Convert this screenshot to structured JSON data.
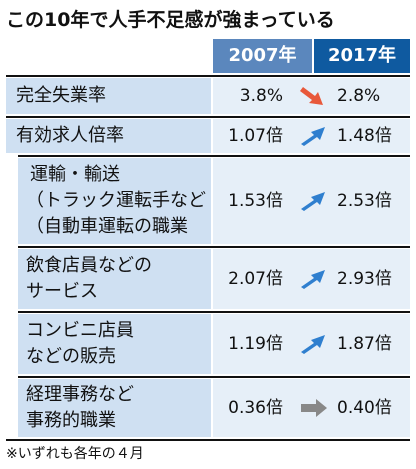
{
  "title": "この10年で人手不足感が強まっている",
  "headers": [
    "2007年",
    "2017年"
  ],
  "rows": [
    {
      "label": "完全失業率",
      "lines": [
        "完全失業率"
      ],
      "v2007": "3.8%",
      "v2017": "2.8%",
      "trend": "down"
    },
    {
      "label": "有効求人倍率",
      "lines": [
        "有効求人倍率"
      ],
      "v2007": "1.07倍",
      "v2017": "1.48倍",
      "trend": "up"
    },
    {
      "label": "運輸・輸送（トラック運転手など自動車運転の職業）",
      "lines": [
        "運輸・輸送",
        "（トラック運転手など",
        "（自動車運転の職業"
      ],
      "v2007": "1.53倍",
      "v2017": "2.53倍",
      "trend": "up"
    },
    {
      "label": "飲食店員などのサービス",
      "lines": [
        "飲食店員などの",
        "サービス"
      ],
      "v2007": "2.07倍",
      "v2017": "2.93倍",
      "trend": "up"
    },
    {
      "label": "コンビニ店員などの販売",
      "lines": [
        "コンビニ店員",
        "などの販売"
      ],
      "v2007": "1.19倍",
      "v2017": "1.87倍",
      "trend": "up"
    },
    {
      "label": "経理事務など事務的職業",
      "lines": [
        "経理事務など",
        "事務的職業"
      ],
      "v2007": "0.36倍",
      "v2017": "0.40倍",
      "trend": "flat"
    }
  ],
  "footnote": "※いずれも各年の４月",
  "colors": {
    "down": "#e8583a",
    "up": "#2f7fcf",
    "flat": "#888888",
    "header2007": "#5b87bd",
    "header2017": "#0f5aa0",
    "labelBg": "#cfe0f2",
    "valueBg": "#e6eff8"
  }
}
